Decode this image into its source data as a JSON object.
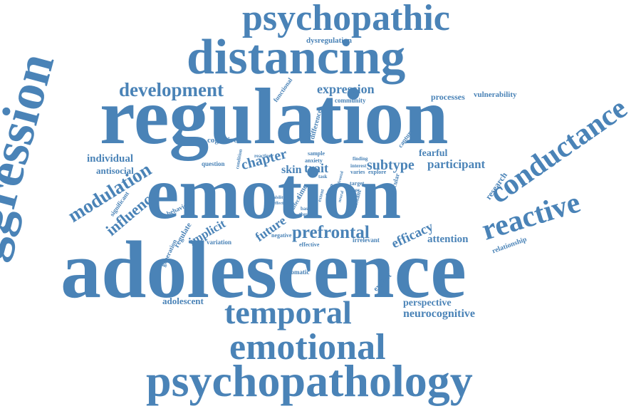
{
  "color": "#4a83b7",
  "words": [
    {
      "text": "adolescence"
    },
    {
      "text": "regulation"
    },
    {
      "text": "emotion"
    },
    {
      "text": "aggression"
    },
    {
      "text": "distancing"
    },
    {
      "text": "psychopathic"
    },
    {
      "text": "psychopathology"
    },
    {
      "text": "emotional"
    },
    {
      "text": "temporal"
    },
    {
      "text": "conductance"
    },
    {
      "text": "reactive"
    },
    {
      "text": "development"
    },
    {
      "text": "modulation"
    },
    {
      "text": "prefrontal"
    },
    {
      "text": "influence"
    },
    {
      "text": "subtype"
    },
    {
      "text": "participant"
    },
    {
      "text": "expression"
    },
    {
      "text": "chapter"
    },
    {
      "text": "efficacy"
    },
    {
      "text": "future"
    },
    {
      "text": "implicit"
    },
    {
      "text": "attention"
    },
    {
      "text": "neurocognitive"
    },
    {
      "text": "perspective"
    },
    {
      "text": "skin"
    },
    {
      "text": "trait"
    },
    {
      "text": "individual"
    },
    {
      "text": "antisocial"
    },
    {
      "text": "fearful"
    },
    {
      "text": "adolescent"
    },
    {
      "text": "processes"
    },
    {
      "text": "vulnerability"
    },
    {
      "text": "cognitive"
    },
    {
      "text": "dysregulation"
    },
    {
      "text": "automatic"
    },
    {
      "text": "research"
    },
    {
      "text": "relationship"
    },
    {
      "text": "irrelevant"
    },
    {
      "text": "functional"
    },
    {
      "text": "community"
    },
    {
      "text": "difference"
    },
    {
      "text": "capture"
    },
    {
      "text": "question"
    },
    {
      "text": "behaviour"
    },
    {
      "text": "regulate"
    },
    {
      "text": "significant"
    },
    {
      "text": "generation"
    },
    {
      "text": "variation"
    },
    {
      "text": "explicit"
    },
    {
      "text": "effective"
    },
    {
      "text": "negative"
    },
    {
      "text": "particular"
    },
    {
      "text": "time"
    },
    {
      "text": "face"
    },
    {
      "text": "target"
    },
    {
      "text": "varies"
    },
    {
      "text": "explore"
    },
    {
      "text": "anxiety"
    },
    {
      "text": "sample"
    },
    {
      "text": "task"
    },
    {
      "text": "finding"
    },
    {
      "text": "interest"
    },
    {
      "text": "poor"
    },
    {
      "text": "distant"
    },
    {
      "text": "extent"
    },
    {
      "text": "affect"
    },
    {
      "text": "basic"
    },
    {
      "text": "thesis"
    },
    {
      "text": "neural"
    },
    {
      "text": "ability"
    },
    {
      "text": "effect"
    },
    {
      "text": "condition"
    },
    {
      "text": "reaction"
    },
    {
      "text": "frontal"
    }
  ]
}
